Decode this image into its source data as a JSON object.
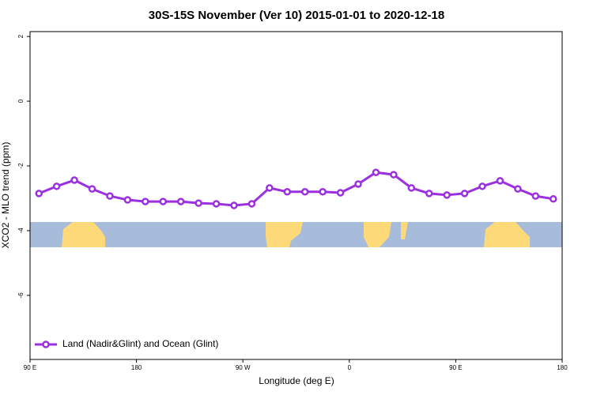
{
  "chart_data": {
    "type": "line",
    "title": "30S-15S November (Ver 10)   2015-01-01 to 2020-12-18",
    "x_label": "Longitude (deg E)",
    "y_label": "XCO2 - MLO trend (ppm)",
    "x": [
      97.5,
      112.5,
      127.5,
      142.5,
      157.5,
      172.5,
      187.5,
      202.5,
      217.5,
      232.5,
      247.5,
      262.5,
      277.5,
      292.5,
      307.5,
      322.5,
      337.5,
      352.5,
      367.5,
      382.5,
      397.5,
      412.5,
      427.5,
      442.5,
      457.5,
      472.5,
      487.5,
      502.5,
      517.5,
      532.5
    ],
    "series": [
      {
        "name": "Land (Nadir&Glint) and Ocean (Glint)",
        "color": "#9b30e0",
        "values": [
          -2.85,
          -2.63,
          -2.44,
          -2.71,
          -2.93,
          -3.05,
          -3.1,
          -3.1,
          -3.1,
          -3.15,
          -3.17,
          -3.22,
          -3.17,
          -2.68,
          -2.8,
          -2.8,
          -2.8,
          -2.83,
          -2.56,
          -2.2,
          -2.27,
          -2.68,
          -2.85,
          -2.9,
          -2.85,
          -2.63,
          -2.46,
          -2.71,
          -2.93,
          -3.02
        ]
      }
    ],
    "xlim": [
      90,
      540
    ],
    "xticks": [
      {
        "value": 90,
        "label": "90 E"
      },
      180,
      {
        "value": 270,
        "label": "90 W"
      },
      {
        "value": 360,
        "label": "0"
      },
      {
        "value": 450,
        "label": "90 E"
      },
      {
        "value": 540,
        "label": "180"
      }
    ],
    "ylim": [
      -7.98,
      2.15
    ],
    "yticks": [
      2,
      0,
      -2,
      -4,
      -6
    ],
    "legend": "bottom-left"
  }
}
